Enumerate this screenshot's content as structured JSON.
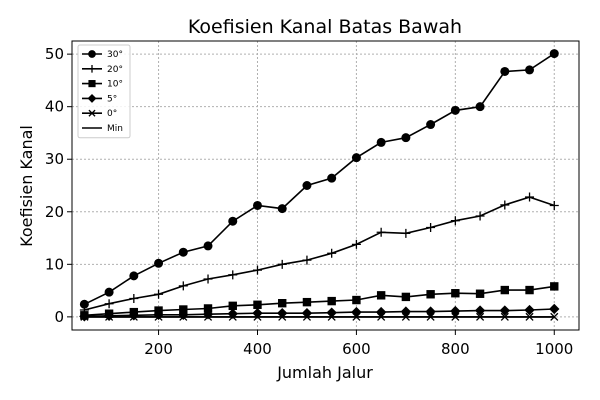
{
  "chart_data": {
    "type": "line",
    "title": "Koefisien Kanal Batas Bawah",
    "xlabel": "Jumlah Jalur",
    "ylabel": "Koefisien Kanal",
    "xlim": [
      25,
      1050
    ],
    "ylim": [
      -2.5,
      52.5
    ],
    "xticks": [
      200,
      400,
      600,
      800,
      1000
    ],
    "yticks": [
      0,
      10,
      20,
      30,
      40,
      50
    ],
    "grid": true,
    "legend_position": "top-left",
    "x": [
      50,
      100,
      150,
      200,
      250,
      300,
      350,
      400,
      450,
      500,
      550,
      600,
      650,
      700,
      750,
      800,
      850,
      900,
      950,
      1000
    ],
    "series": [
      {
        "name": "30°",
        "marker": "circle",
        "values": [
          2.4,
          4.7,
          7.8,
          10.2,
          12.3,
          13.5,
          18.2,
          21.2,
          20.6,
          25.0,
          26.4,
          30.3,
          33.2,
          34.1,
          36.6,
          39.3,
          40.0,
          46.7,
          47.0,
          50.1
        ]
      },
      {
        "name": "20°",
        "marker": "plus",
        "values": [
          1.3,
          2.5,
          3.5,
          4.3,
          5.9,
          7.2,
          8.0,
          8.9,
          10.0,
          10.8,
          12.1,
          13.8,
          16.1,
          15.9,
          17.0,
          18.3,
          19.2,
          21.3,
          22.8,
          21.2
        ]
      },
      {
        "name": "10°",
        "marker": "square",
        "values": [
          0.3,
          0.6,
          0.9,
          1.2,
          1.4,
          1.6,
          2.1,
          2.3,
          2.6,
          2.8,
          3.0,
          3.2,
          4.1,
          3.8,
          4.3,
          4.5,
          4.4,
          5.1,
          5.1,
          5.8
        ]
      },
      {
        "name": "5°",
        "marker": "diamond",
        "values": [
          0.1,
          0.2,
          0.3,
          0.4,
          0.4,
          0.5,
          0.6,
          0.7,
          0.7,
          0.7,
          0.8,
          0.9,
          0.9,
          1.0,
          1.0,
          1.1,
          1.2,
          1.2,
          1.3,
          1.5
        ]
      },
      {
        "name": "0°",
        "marker": "x",
        "values": [
          0,
          0,
          0,
          0,
          0,
          0,
          0,
          0,
          0,
          0,
          0,
          0,
          0,
          0,
          0,
          0,
          0,
          0,
          0,
          0
        ]
      },
      {
        "name": "Min",
        "marker": "none",
        "values": [
          0,
          0,
          0,
          0,
          0,
          0,
          0,
          0,
          0,
          0,
          0,
          0,
          0,
          0,
          0,
          0,
          0,
          0,
          0,
          0
        ]
      }
    ]
  }
}
